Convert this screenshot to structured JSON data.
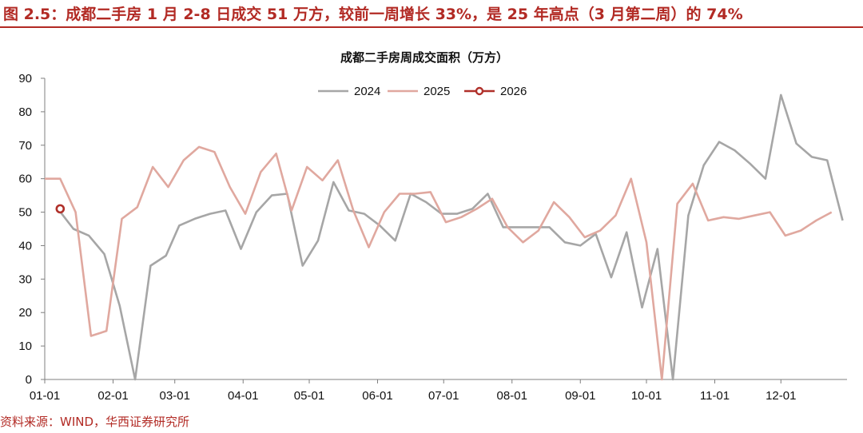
{
  "figure": {
    "title": "图 2.5：成都二手房 1 月 2-8 日成交 51 万方，较前一周增长 33%，是 25 年高点（3 月第二周）的 74%",
    "source": "资料来源：WIND，华西证券研究所"
  },
  "chart_data": {
    "type": "line",
    "title": "成都二手房周成交面积（万方）",
    "xlabel": "",
    "ylabel": "",
    "ylim": [
      0,
      90
    ],
    "yticks": [
      0,
      10,
      20,
      30,
      40,
      50,
      60,
      70,
      80,
      90
    ],
    "xticks": [
      "01-01",
      "02-01",
      "03-01",
      "04-01",
      "05-01",
      "06-01",
      "07-01",
      "08-01",
      "09-01",
      "10-01",
      "11-01",
      "12-01"
    ],
    "xlim_days": [
      0,
      364
    ],
    "grid": false,
    "legend_position": "top-center",
    "series": [
      {
        "name": "2024",
        "color": "#a6a6a6",
        "marker": "none",
        "points": [
          {
            "date": "01-07",
            "value": 51
          },
          {
            "date": "01-14",
            "value": 45
          },
          {
            "date": "01-21",
            "value": 43
          },
          {
            "date": "01-28",
            "value": 37.5
          },
          {
            "date": "02-04",
            "value": 22
          },
          {
            "date": "02-11",
            "value": 0
          },
          {
            "date": "02-18",
            "value": 34
          },
          {
            "date": "02-25",
            "value": 37
          },
          {
            "date": "03-03",
            "value": 46
          },
          {
            "date": "03-10",
            "value": 48
          },
          {
            "date": "03-17",
            "value": 49.5
          },
          {
            "date": "03-24",
            "value": 50.5
          },
          {
            "date": "03-31",
            "value": 39
          },
          {
            "date": "04-07",
            "value": 50
          },
          {
            "date": "04-14",
            "value": 55
          },
          {
            "date": "04-21",
            "value": 55.5
          },
          {
            "date": "04-28",
            "value": 34
          },
          {
            "date": "05-05",
            "value": 41.5
          },
          {
            "date": "05-12",
            "value": 59
          },
          {
            "date": "05-19",
            "value": 50.5
          },
          {
            "date": "05-26",
            "value": 49.5
          },
          {
            "date": "06-02",
            "value": 46
          },
          {
            "date": "06-09",
            "value": 41.5
          },
          {
            "date": "06-16",
            "value": 55.5
          },
          {
            "date": "06-23",
            "value": 53
          },
          {
            "date": "06-30",
            "value": 49.5
          },
          {
            "date": "07-07",
            "value": 49.5
          },
          {
            "date": "07-14",
            "value": 51
          },
          {
            "date": "07-21",
            "value": 55.5
          },
          {
            "date": "07-28",
            "value": 45.5
          },
          {
            "date": "08-04",
            "value": 45.5
          },
          {
            "date": "08-11",
            "value": 45.5
          },
          {
            "date": "08-18",
            "value": 45.5
          },
          {
            "date": "08-25",
            "value": 41
          },
          {
            "date": "09-01",
            "value": 40
          },
          {
            "date": "09-08",
            "value": 43.5
          },
          {
            "date": "09-15",
            "value": 30.5
          },
          {
            "date": "09-22",
            "value": 44
          },
          {
            "date": "09-29",
            "value": 21.5
          },
          {
            "date": "10-06",
            "value": 39
          },
          {
            "date": "10-13",
            "value": 0
          },
          {
            "date": "10-20",
            "value": 49
          },
          {
            "date": "10-27",
            "value": 64
          },
          {
            "date": "11-03",
            "value": 71
          },
          {
            "date": "11-10",
            "value": 68.5
          },
          {
            "date": "11-17",
            "value": 64.5
          },
          {
            "date": "11-24",
            "value": 60
          },
          {
            "date": "12-01",
            "value": 85
          },
          {
            "date": "12-08",
            "value": 70.5
          },
          {
            "date": "12-15",
            "value": 66.5
          },
          {
            "date": "12-22",
            "value": 65.5
          },
          {
            "date": "12-29",
            "value": 47.5
          }
        ]
      },
      {
        "name": "2025",
        "color": "#e0a89f",
        "marker": "none",
        "points": [
          {
            "date": "01-01",
            "value": 60
          },
          {
            "date": "01-08",
            "value": 60
          },
          {
            "date": "01-15",
            "value": 50
          },
          {
            "date": "01-22",
            "value": 13
          },
          {
            "date": "01-29",
            "value": 14.5
          },
          {
            "date": "02-05",
            "value": 48
          },
          {
            "date": "02-12",
            "value": 51.5
          },
          {
            "date": "02-19",
            "value": 63.5
          },
          {
            "date": "02-26",
            "value": 57.5
          },
          {
            "date": "03-05",
            "value": 65.5
          },
          {
            "date": "03-12",
            "value": 69.5
          },
          {
            "date": "03-19",
            "value": 68
          },
          {
            "date": "03-26",
            "value": 57.5
          },
          {
            "date": "04-02",
            "value": 49.5
          },
          {
            "date": "04-09",
            "value": 62
          },
          {
            "date": "04-16",
            "value": 67.5
          },
          {
            "date": "04-23",
            "value": 50.5
          },
          {
            "date": "04-30",
            "value": 63.5
          },
          {
            "date": "05-07",
            "value": 59.5
          },
          {
            "date": "05-14",
            "value": 65.5
          },
          {
            "date": "05-21",
            "value": 50.5
          },
          {
            "date": "05-28",
            "value": 39.5
          },
          {
            "date": "06-04",
            "value": 50
          },
          {
            "date": "06-11",
            "value": 55.5
          },
          {
            "date": "06-18",
            "value": 55.5
          },
          {
            "date": "06-25",
            "value": 56
          },
          {
            "date": "07-02",
            "value": 47
          },
          {
            "date": "07-09",
            "value": 48.5
          },
          {
            "date": "07-16",
            "value": 51
          },
          {
            "date": "07-23",
            "value": 54
          },
          {
            "date": "07-30",
            "value": 45.5
          },
          {
            "date": "08-06",
            "value": 41
          },
          {
            "date": "08-13",
            "value": 44.5
          },
          {
            "date": "08-20",
            "value": 53
          },
          {
            "date": "08-27",
            "value": 48.5
          },
          {
            "date": "09-03",
            "value": 42.5
          },
          {
            "date": "09-10",
            "value": 44.5
          },
          {
            "date": "09-17",
            "value": 49
          },
          {
            "date": "09-24",
            "value": 60
          },
          {
            "date": "10-01",
            "value": 41
          },
          {
            "date": "10-08",
            "value": 0
          },
          {
            "date": "10-15",
            "value": 52.5
          },
          {
            "date": "10-22",
            "value": 58.5
          },
          {
            "date": "10-29",
            "value": 47.5
          },
          {
            "date": "11-05",
            "value": 48.5
          },
          {
            "date": "11-12",
            "value": 48
          },
          {
            "date": "11-19",
            "value": 49
          },
          {
            "date": "11-26",
            "value": 50
          },
          {
            "date": "12-03",
            "value": 43
          },
          {
            "date": "12-10",
            "value": 44.5
          },
          {
            "date": "12-17",
            "value": 47.5
          },
          {
            "date": "12-24",
            "value": 50
          }
        ]
      },
      {
        "name": "2026",
        "color": "#b0302a",
        "marker": "circle",
        "points": [
          {
            "date": "01-08",
            "value": 51
          }
        ]
      }
    ]
  }
}
